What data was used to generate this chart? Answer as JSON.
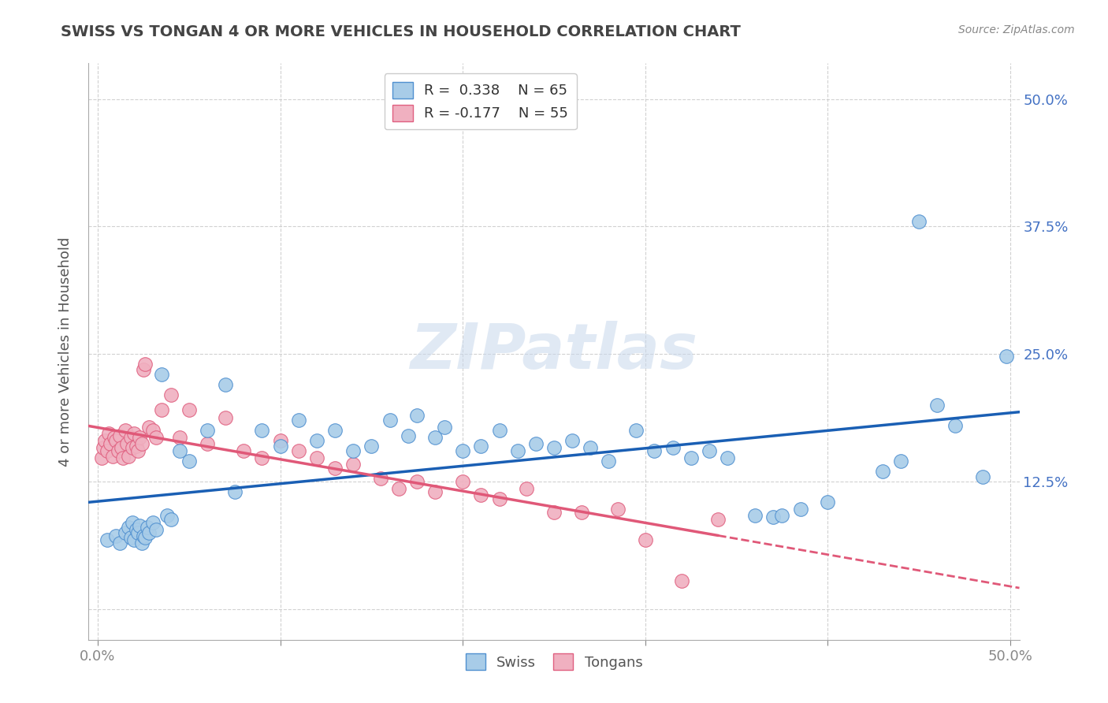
{
  "title": "SWISS VS TONGAN 4 OR MORE VEHICLES IN HOUSEHOLD CORRELATION CHART",
  "source": "Source: ZipAtlas.com",
  "ylabel": "4 or more Vehicles in Household",
  "watermark": "ZIPatlas",
  "xlim": [
    -0.005,
    0.505
  ],
  "ylim": [
    -0.03,
    0.535
  ],
  "xticks": [
    0.0,
    0.1,
    0.2,
    0.3,
    0.4,
    0.5
  ],
  "xticklabels": [
    "0.0%",
    "",
    "",
    "",
    "",
    "50.0%"
  ],
  "yticks": [
    0.0,
    0.125,
    0.25,
    0.375,
    0.5
  ],
  "yticklabels": [
    "",
    "12.5%",
    "25.0%",
    "37.5%",
    "50.0%"
  ],
  "legend_swiss_r": "R =  0.338",
  "legend_swiss_n": "N = 65",
  "legend_tongan_r": "R = -0.177",
  "legend_tongan_n": "N = 55",
  "swiss_color": "#a8cce8",
  "tongan_color": "#f0b0c0",
  "swiss_edge_color": "#5090d0",
  "tongan_edge_color": "#e06080",
  "swiss_line_color": "#1a5fb4",
  "tongan_line_color": "#e05878",
  "background_color": "#ffffff",
  "grid_color": "#cccccc",
  "swiss_x": [
    0.005,
    0.01,
    0.012,
    0.015,
    0.017,
    0.018,
    0.019,
    0.02,
    0.021,
    0.022,
    0.023,
    0.024,
    0.025,
    0.026,
    0.027,
    0.028,
    0.03,
    0.032,
    0.035,
    0.038,
    0.04,
    0.045,
    0.05,
    0.06,
    0.07,
    0.075,
    0.09,
    0.1,
    0.11,
    0.12,
    0.13,
    0.14,
    0.15,
    0.16,
    0.17,
    0.175,
    0.185,
    0.19,
    0.2,
    0.21,
    0.22,
    0.23,
    0.24,
    0.25,
    0.26,
    0.27,
    0.28,
    0.295,
    0.305,
    0.315,
    0.325,
    0.335,
    0.345,
    0.36,
    0.37,
    0.375,
    0.385,
    0.4,
    0.43,
    0.44,
    0.45,
    0.46,
    0.47,
    0.485,
    0.498
  ],
  "swiss_y": [
    0.068,
    0.072,
    0.065,
    0.075,
    0.08,
    0.07,
    0.085,
    0.068,
    0.078,
    0.075,
    0.082,
    0.065,
    0.072,
    0.07,
    0.08,
    0.075,
    0.085,
    0.078,
    0.23,
    0.092,
    0.088,
    0.155,
    0.145,
    0.175,
    0.22,
    0.115,
    0.175,
    0.16,
    0.185,
    0.165,
    0.175,
    0.155,
    0.16,
    0.185,
    0.17,
    0.19,
    0.168,
    0.178,
    0.155,
    0.16,
    0.175,
    0.155,
    0.162,
    0.158,
    0.165,
    0.158,
    0.145,
    0.175,
    0.155,
    0.158,
    0.148,
    0.155,
    0.148,
    0.092,
    0.09,
    0.092,
    0.098,
    0.105,
    0.135,
    0.145,
    0.38,
    0.2,
    0.18,
    0.13,
    0.248
  ],
  "tongan_x": [
    0.002,
    0.003,
    0.004,
    0.005,
    0.006,
    0.007,
    0.008,
    0.009,
    0.01,
    0.011,
    0.012,
    0.013,
    0.014,
    0.015,
    0.016,
    0.017,
    0.018,
    0.019,
    0.02,
    0.021,
    0.022,
    0.023,
    0.024,
    0.025,
    0.026,
    0.028,
    0.03,
    0.032,
    0.035,
    0.04,
    0.045,
    0.05,
    0.06,
    0.07,
    0.08,
    0.09,
    0.1,
    0.11,
    0.12,
    0.13,
    0.14,
    0.155,
    0.165,
    0.175,
    0.185,
    0.2,
    0.21,
    0.22,
    0.235,
    0.25,
    0.265,
    0.285,
    0.3,
    0.32,
    0.34
  ],
  "tongan_y": [
    0.148,
    0.158,
    0.165,
    0.155,
    0.172,
    0.162,
    0.15,
    0.168,
    0.165,
    0.155,
    0.17,
    0.158,
    0.148,
    0.175,
    0.162,
    0.15,
    0.168,
    0.158,
    0.172,
    0.16,
    0.155,
    0.168,
    0.162,
    0.235,
    0.24,
    0.178,
    0.175,
    0.168,
    0.195,
    0.21,
    0.168,
    0.195,
    0.162,
    0.188,
    0.155,
    0.148,
    0.165,
    0.155,
    0.148,
    0.138,
    0.142,
    0.128,
    0.118,
    0.125,
    0.115,
    0.125,
    0.112,
    0.108,
    0.118,
    0.095,
    0.095,
    0.098,
    0.068,
    0.028,
    0.088
  ]
}
